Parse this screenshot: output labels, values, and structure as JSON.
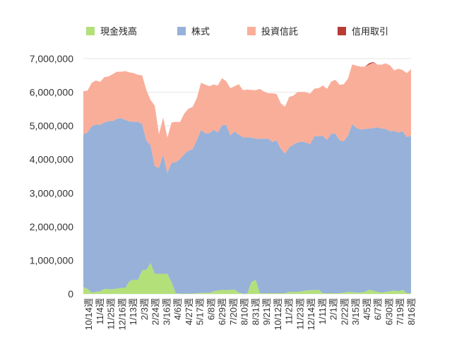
{
  "chart_data": {
    "type": "area",
    "stacked": true,
    "xlabel": "",
    "ylabel": "",
    "ylim": [
      0,
      7000000
    ],
    "yticks": [
      "0",
      "1,000,000",
      "2,000,000",
      "3,000,000",
      "4,000,000",
      "5,000,000",
      "6,000,000",
      "7,000,000"
    ],
    "grid": true,
    "legend_position": "top",
    "xtick_labels": [
      "10/14週",
      "11/4週",
      "11/25週",
      "12/16週",
      "1/13週",
      "2/3週",
      "2/24週",
      "3/16週",
      "4/6週",
      "4/27週",
      "5/17週",
      "6/8週",
      "6/29週",
      "7/20週",
      "8/10週",
      "8/31週",
      "9/21週",
      "10/12週",
      "11/2週",
      "11/23週",
      "12/14週",
      "1/11週",
      "2/1週",
      "2/22週",
      "3/15週",
      "4/5週",
      "6/7週",
      "6/30週",
      "7/19週",
      "8/16週"
    ],
    "series": [
      {
        "name": "現金残高",
        "color": "#b4e07a",
        "values": [
          200000,
          150000,
          40000,
          60000,
          80000,
          150000,
          140000,
          140000,
          160000,
          180000,
          180000,
          380000,
          420000,
          420000,
          700000,
          720000,
          920000,
          600000,
          600000,
          600000,
          600000,
          350000,
          20000,
          10000,
          10000,
          10000,
          10000,
          20000,
          30000,
          30000,
          30000,
          80000,
          100000,
          120000,
          110000,
          120000,
          130000,
          40000,
          10000,
          10000,
          350000,
          420000,
          20000,
          20000,
          20000,
          20000,
          20000,
          20000,
          20000,
          60000,
          60000,
          60000,
          80000,
          100000,
          110000,
          110000,
          120000,
          20000,
          20000,
          20000,
          20000,
          20000,
          40000,
          60000,
          50000,
          40000,
          40000,
          60000,
          120000,
          100000,
          60000,
          40000,
          60000,
          80000,
          100000,
          80000,
          120000,
          20000,
          20000
        ]
      },
      {
        "name": "株式",
        "color": "#97b1d9",
        "values": [
          4550000,
          4650000,
          4950000,
          4980000,
          4950000,
          4950000,
          5000000,
          5000000,
          5050000,
          5050000,
          5000000,
          4750000,
          4700000,
          4700000,
          4350000,
          3850000,
          3500000,
          3200000,
          3150000,
          3550000,
          3000000,
          3550000,
          3900000,
          4000000,
          4150000,
          4250000,
          4300000,
          4550000,
          4850000,
          4750000,
          4750000,
          4800000,
          4700000,
          4900000,
          4920000,
          4600000,
          4700000,
          4700000,
          4650000,
          4650000,
          4300000,
          4200000,
          4600000,
          4600000,
          4600000,
          4500000,
          4550000,
          4300000,
          4150000,
          4300000,
          4380000,
          4450000,
          4450000,
          4400000,
          4350000,
          4580000,
          4570000,
          4680000,
          4560000,
          4750000,
          4750000,
          4550000,
          4500000,
          4650000,
          5000000,
          4900000,
          4850000,
          4850000,
          4800000,
          4830000,
          4900000,
          4880000,
          4850000,
          4760000,
          4750000,
          4720000,
          4720000,
          4650000,
          4690000
        ]
      },
      {
        "name": "投資信託",
        "color": "#f9ae9a",
        "values": [
          1280000,
          1250000,
          1290000,
          1310000,
          1280000,
          1350000,
          1330000,
          1400000,
          1400000,
          1380000,
          1450000,
          1460000,
          1450000,
          1400000,
          1450000,
          1500000,
          1350000,
          1800000,
          1000000,
          1100000,
          1050000,
          1200000,
          1200000,
          1100000,
          1200000,
          1250000,
          1250000,
          1250000,
          1400000,
          1450000,
          1400000,
          1350000,
          1400000,
          1400000,
          1300000,
          1400000,
          1350000,
          1500000,
          1400000,
          1420000,
          1420000,
          1440000,
          1480000,
          1400000,
          1350000,
          1450000,
          1380000,
          1350000,
          1400000,
          1500000,
          1460000,
          1500000,
          1480000,
          1500000,
          1500000,
          1420000,
          1430000,
          1500000,
          1520000,
          1550000,
          1600000,
          1650000,
          1700000,
          1700000,
          1780000,
          1850000,
          1870000,
          1850000,
          1900000,
          1950000,
          1860000,
          1900000,
          1950000,
          1960000,
          1800000,
          1900000,
          1820000,
          1900000,
          1980000
        ]
      },
      {
        "name": "信用取引",
        "color": "#b83b36",
        "values": [
          0,
          0,
          0,
          0,
          0,
          0,
          0,
          0,
          0,
          0,
          0,
          0,
          0,
          0,
          0,
          0,
          0,
          0,
          0,
          0,
          0,
          0,
          0,
          0,
          0,
          0,
          0,
          0,
          0,
          0,
          0,
          0,
          0,
          0,
          0,
          0,
          0,
          0,
          0,
          0,
          0,
          0,
          0,
          0,
          0,
          0,
          0,
          0,
          0,
          0,
          0,
          0,
          0,
          0,
          0,
          0,
          0,
          0,
          0,
          0,
          0,
          0,
          0,
          0,
          0,
          0,
          0,
          0,
          40000,
          20000,
          0,
          0,
          0,
          0,
          0,
          0,
          0,
          0,
          0
        ]
      }
    ]
  }
}
